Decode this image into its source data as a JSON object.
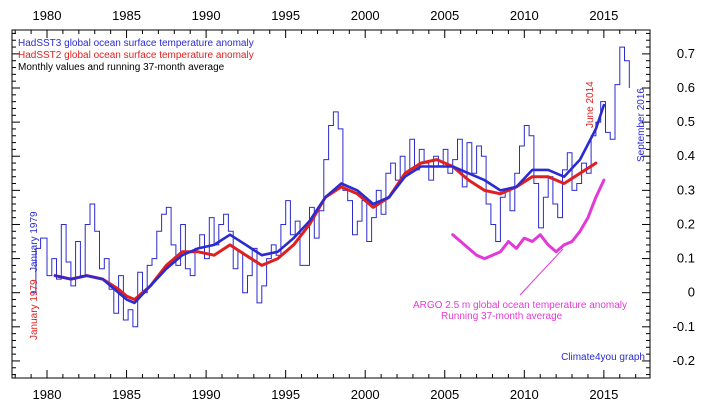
{
  "chart_data": {
    "type": "line",
    "legend": [
      {
        "label": "HadSST3 global ocean surface temperature anomaly",
        "color": "#2b2bd0"
      },
      {
        "label": "HadSST2 global ocean surface temperature anomaly",
        "color": "#e02020"
      },
      {
        "label": "Monthly values and running 37-month average",
        "color": "#000000"
      }
    ],
    "legend_position": "top-left",
    "x_ticks": [
      1980,
      1985,
      1990,
      1995,
      2000,
      2005,
      2010,
      2015
    ],
    "x_tick_labels": [
      "1980",
      "1985",
      "1990",
      "1995",
      "2000",
      "2005",
      "2010",
      "2015"
    ],
    "xlim": [
      1977.8,
      2017.9
    ],
    "y_ticks": [
      -0.2,
      -0.1,
      0,
      0.1,
      0.2,
      0.3,
      0.4,
      0.5,
      0.6,
      0.7
    ],
    "y_tick_labels": [
      "-0.2",
      "-0.1",
      "0",
      "0.1",
      "0.2",
      "0.3",
      "0.4",
      "0.5",
      "0.6",
      "0.7"
    ],
    "ylim": [
      -0.25,
      0.77
    ],
    "grid": false,
    "series": [
      {
        "name": "HadSST3 global ocean surface temperature anomaly",
        "color": "#2b2bd0",
        "monthly": {
          "x": [
            1979.0,
            1979.3,
            1979.6,
            1980.0,
            1980.3,
            1980.6,
            1980.9,
            1981.2,
            1981.5,
            1981.8,
            1982.1,
            1982.4,
            1982.7,
            1983.0,
            1983.3,
            1983.6,
            1983.9,
            1984.2,
            1984.5,
            1984.8,
            1985.1,
            1985.4,
            1985.7,
            1986.0,
            1986.3,
            1986.6,
            1986.9,
            1987.2,
            1987.5,
            1987.8,
            1988.1,
            1988.4,
            1988.7,
            1989.0,
            1989.3,
            1989.6,
            1989.9,
            1990.2,
            1990.5,
            1990.8,
            1991.1,
            1991.4,
            1991.7,
            1992.0,
            1992.3,
            1992.6,
            1992.9,
            1993.2,
            1993.5,
            1993.8,
            1994.1,
            1994.4,
            1994.7,
            1995.0,
            1995.3,
            1995.6,
            1995.9,
            1996.2,
            1996.5,
            1996.8,
            1997.1,
            1997.4,
            1997.7,
            1998.0,
            1998.3,
            1998.6,
            1998.9,
            1999.2,
            1999.5,
            1999.8,
            2000.1,
            2000.4,
            2000.7,
            2001.0,
            2001.3,
            2001.6,
            2001.9,
            2002.2,
            2002.5,
            2002.8,
            2003.1,
            2003.4,
            2003.7,
            2004.0,
            2004.3,
            2004.6,
            2004.9,
            2005.2,
            2005.5,
            2005.8,
            2006.1,
            2006.4,
            2006.7,
            2007.0,
            2007.3,
            2007.6,
            2007.9,
            2008.2,
            2008.5,
            2008.8,
            2009.1,
            2009.4,
            2009.7,
            2010.0,
            2010.3,
            2010.6,
            2010.9,
            2011.2,
            2011.5,
            2011.8,
            2012.1,
            2012.4,
            2012.7,
            2013.0,
            2013.3,
            2013.6,
            2013.9,
            2014.2,
            2014.5,
            2014.8,
            2015.1,
            2015.4,
            2015.7,
            2016.0,
            2016.3,
            2016.6
          ],
          "y": [
            0.0,
            0.13,
            0.16,
            0.05,
            0.1,
            0.04,
            0.2,
            0.09,
            0.02,
            0.15,
            0.05,
            0.2,
            0.26,
            0.18,
            0.07,
            0.1,
            0.01,
            -0.06,
            0.05,
            -0.08,
            -0.05,
            -0.1,
            0.06,
            0.0,
            0.08,
            0.1,
            0.18,
            0.23,
            0.25,
            0.14,
            0.08,
            0.2,
            0.07,
            0.05,
            0.13,
            0.17,
            0.1,
            0.22,
            0.14,
            0.2,
            0.23,
            0.18,
            0.07,
            0.12,
            0.0,
            0.05,
            0.13,
            -0.03,
            0.02,
            0.1,
            0.14,
            0.11,
            0.2,
            0.27,
            0.17,
            0.21,
            0.08,
            0.08,
            0.25,
            0.16,
            0.24,
            0.39,
            0.49,
            0.53,
            0.48,
            0.3,
            0.27,
            0.17,
            0.21,
            0.27,
            0.15,
            0.22,
            0.3,
            0.23,
            0.35,
            0.38,
            0.33,
            0.4,
            0.35,
            0.45,
            0.36,
            0.42,
            0.38,
            0.33,
            0.4,
            0.37,
            0.42,
            0.35,
            0.39,
            0.45,
            0.31,
            0.44,
            0.35,
            0.43,
            0.4,
            0.26,
            0.2,
            0.15,
            0.28,
            0.3,
            0.24,
            0.35,
            0.43,
            0.49,
            0.46,
            0.32,
            0.19,
            0.28,
            0.34,
            0.26,
            0.22,
            0.36,
            0.41,
            0.3,
            0.32,
            0.38,
            0.35,
            0.46,
            0.5,
            0.56,
            0.47,
            0.45,
            0.61,
            0.72,
            0.68,
            0.6
          ]
        },
        "running_average": {
          "x": [
            1980.5,
            1981.5,
            1982.5,
            1983.5,
            1984.5,
            1985.0,
            1985.5,
            1986.5,
            1987.5,
            1988.5,
            1989.5,
            1990.5,
            1991.5,
            1992.5,
            1993.5,
            1994.5,
            1995.5,
            1996.5,
            1997.5,
            1998.5,
            1999.5,
            2000.5,
            2001.5,
            2002.5,
            2003.5,
            2004.5,
            2005.5,
            2006.5,
            2007.5,
            2008.5,
            2009.5,
            2010.5,
            2011.5,
            2012.5,
            2013.5,
            2014.5,
            2015.0
          ],
          "y": [
            0.05,
            0.04,
            0.05,
            0.04,
            0.0,
            -0.02,
            -0.03,
            0.02,
            0.07,
            0.11,
            0.13,
            0.14,
            0.17,
            0.14,
            0.11,
            0.12,
            0.16,
            0.21,
            0.28,
            0.32,
            0.3,
            0.26,
            0.28,
            0.34,
            0.37,
            0.37,
            0.37,
            0.35,
            0.33,
            0.3,
            0.31,
            0.36,
            0.36,
            0.34,
            0.39,
            0.48,
            0.55
          ]
        }
      },
      {
        "name": "HadSST2 global ocean surface temperature anomaly",
        "color": "#e02020",
        "running_average": {
          "x": [
            1980.5,
            1981.5,
            1982.5,
            1983.5,
            1984.5,
            1985.0,
            1985.5,
            1986.5,
            1987.5,
            1988.5,
            1989.5,
            1990.5,
            1991.5,
            1992.5,
            1993.5,
            1994.5,
            1995.5,
            1996.5,
            1997.5,
            1998.5,
            1999.5,
            2000.5,
            2001.5,
            2002.5,
            2003.5,
            2004.5,
            2005.5,
            2006.5,
            2007.5,
            2008.5,
            2009.5,
            2010.5,
            2011.5,
            2012.5,
            2013.5,
            2014.5
          ],
          "y": [
            0.05,
            0.04,
            0.05,
            0.04,
            0.01,
            -0.01,
            -0.02,
            0.02,
            0.08,
            0.12,
            0.12,
            0.11,
            0.14,
            0.11,
            0.08,
            0.1,
            0.14,
            0.2,
            0.28,
            0.31,
            0.29,
            0.25,
            0.28,
            0.35,
            0.38,
            0.39,
            0.37,
            0.33,
            0.3,
            0.29,
            0.31,
            0.34,
            0.34,
            0.32,
            0.35,
            0.38
          ]
        }
      },
      {
        "name": "ARGO 2.5 m global ocean temperature anomaly Running 37-month average",
        "color": "#e23ad8",
        "running_average": {
          "x": [
            2005.5,
            2006.0,
            2006.5,
            2007.0,
            2007.5,
            2008.0,
            2008.5,
            2009.0,
            2009.5,
            2010.0,
            2010.5,
            2011.0,
            2011.5,
            2012.0,
            2012.5,
            2013.0,
            2013.5,
            2014.0,
            2014.5,
            2015.0
          ],
          "y": [
            0.17,
            0.15,
            0.13,
            0.11,
            0.1,
            0.11,
            0.12,
            0.15,
            0.13,
            0.16,
            0.15,
            0.17,
            0.14,
            0.12,
            0.14,
            0.15,
            0.18,
            0.22,
            0.28,
            0.33
          ]
        }
      }
    ],
    "annotations": {
      "argo_label_line1": "ARGO 2.5 m global ocean temperature anomaly",
      "argo_label_line2": "Running 37-month average",
      "argo_color": "#e23ad8",
      "january_1979_blue": "January 1979",
      "january_1979_red": "January 1979",
      "june_2014": "June 2014",
      "september_2016": "September 2016",
      "credit": "Climate4you graph"
    }
  }
}
